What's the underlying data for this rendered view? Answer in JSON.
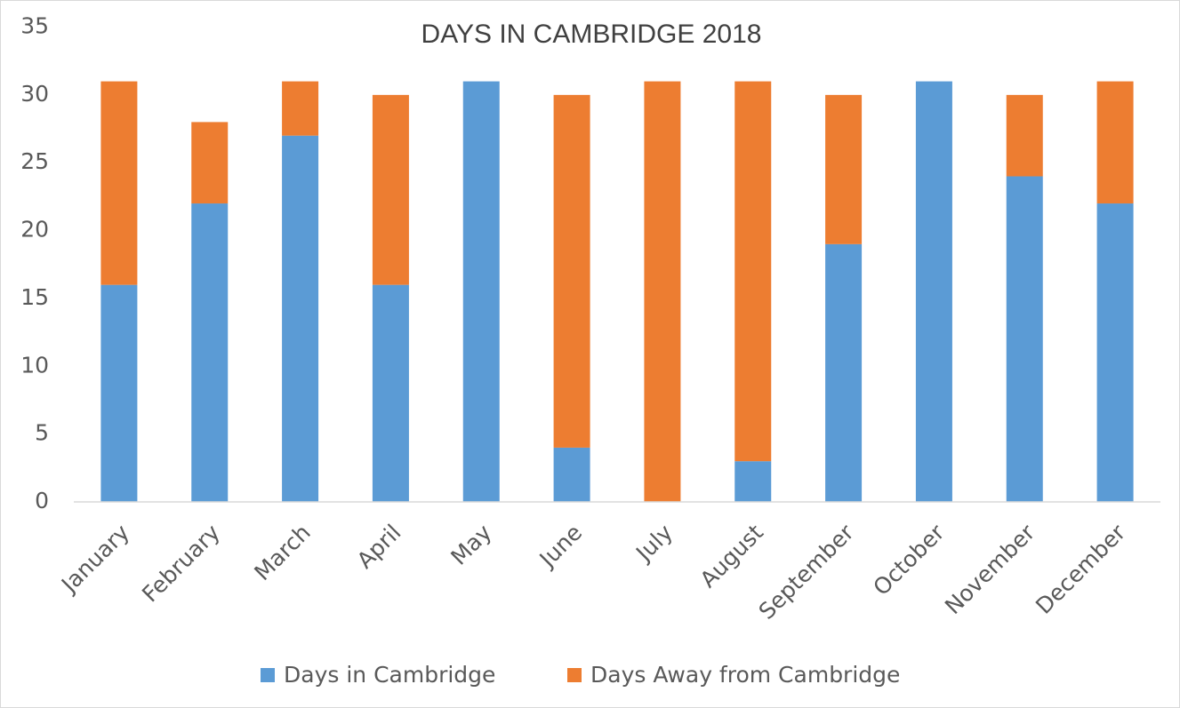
{
  "chart_data": {
    "type": "bar",
    "stacked": true,
    "title": "DAYS IN CAMBRIDGE 2018",
    "categories": [
      "January",
      "February",
      "March",
      "April",
      "May",
      "June",
      "July",
      "August",
      "September",
      "October",
      "November",
      "December"
    ],
    "series": [
      {
        "name": "Days in Cambridge",
        "color": "#5b9bd5",
        "values": [
          16,
          22,
          27,
          16,
          31,
          4,
          0,
          3,
          19,
          31,
          24,
          22
        ]
      },
      {
        "name": "Days Away from Cambridge",
        "color": "#ed7d31",
        "values": [
          15,
          6,
          4,
          14,
          0,
          26,
          31,
          28,
          11,
          0,
          6,
          9
        ]
      }
    ],
    "ylim": [
      0,
      35
    ],
    "yticks": [
      0,
      5,
      10,
      15,
      20,
      25,
      30,
      35
    ],
    "grid": false,
    "legend": "bottom"
  }
}
